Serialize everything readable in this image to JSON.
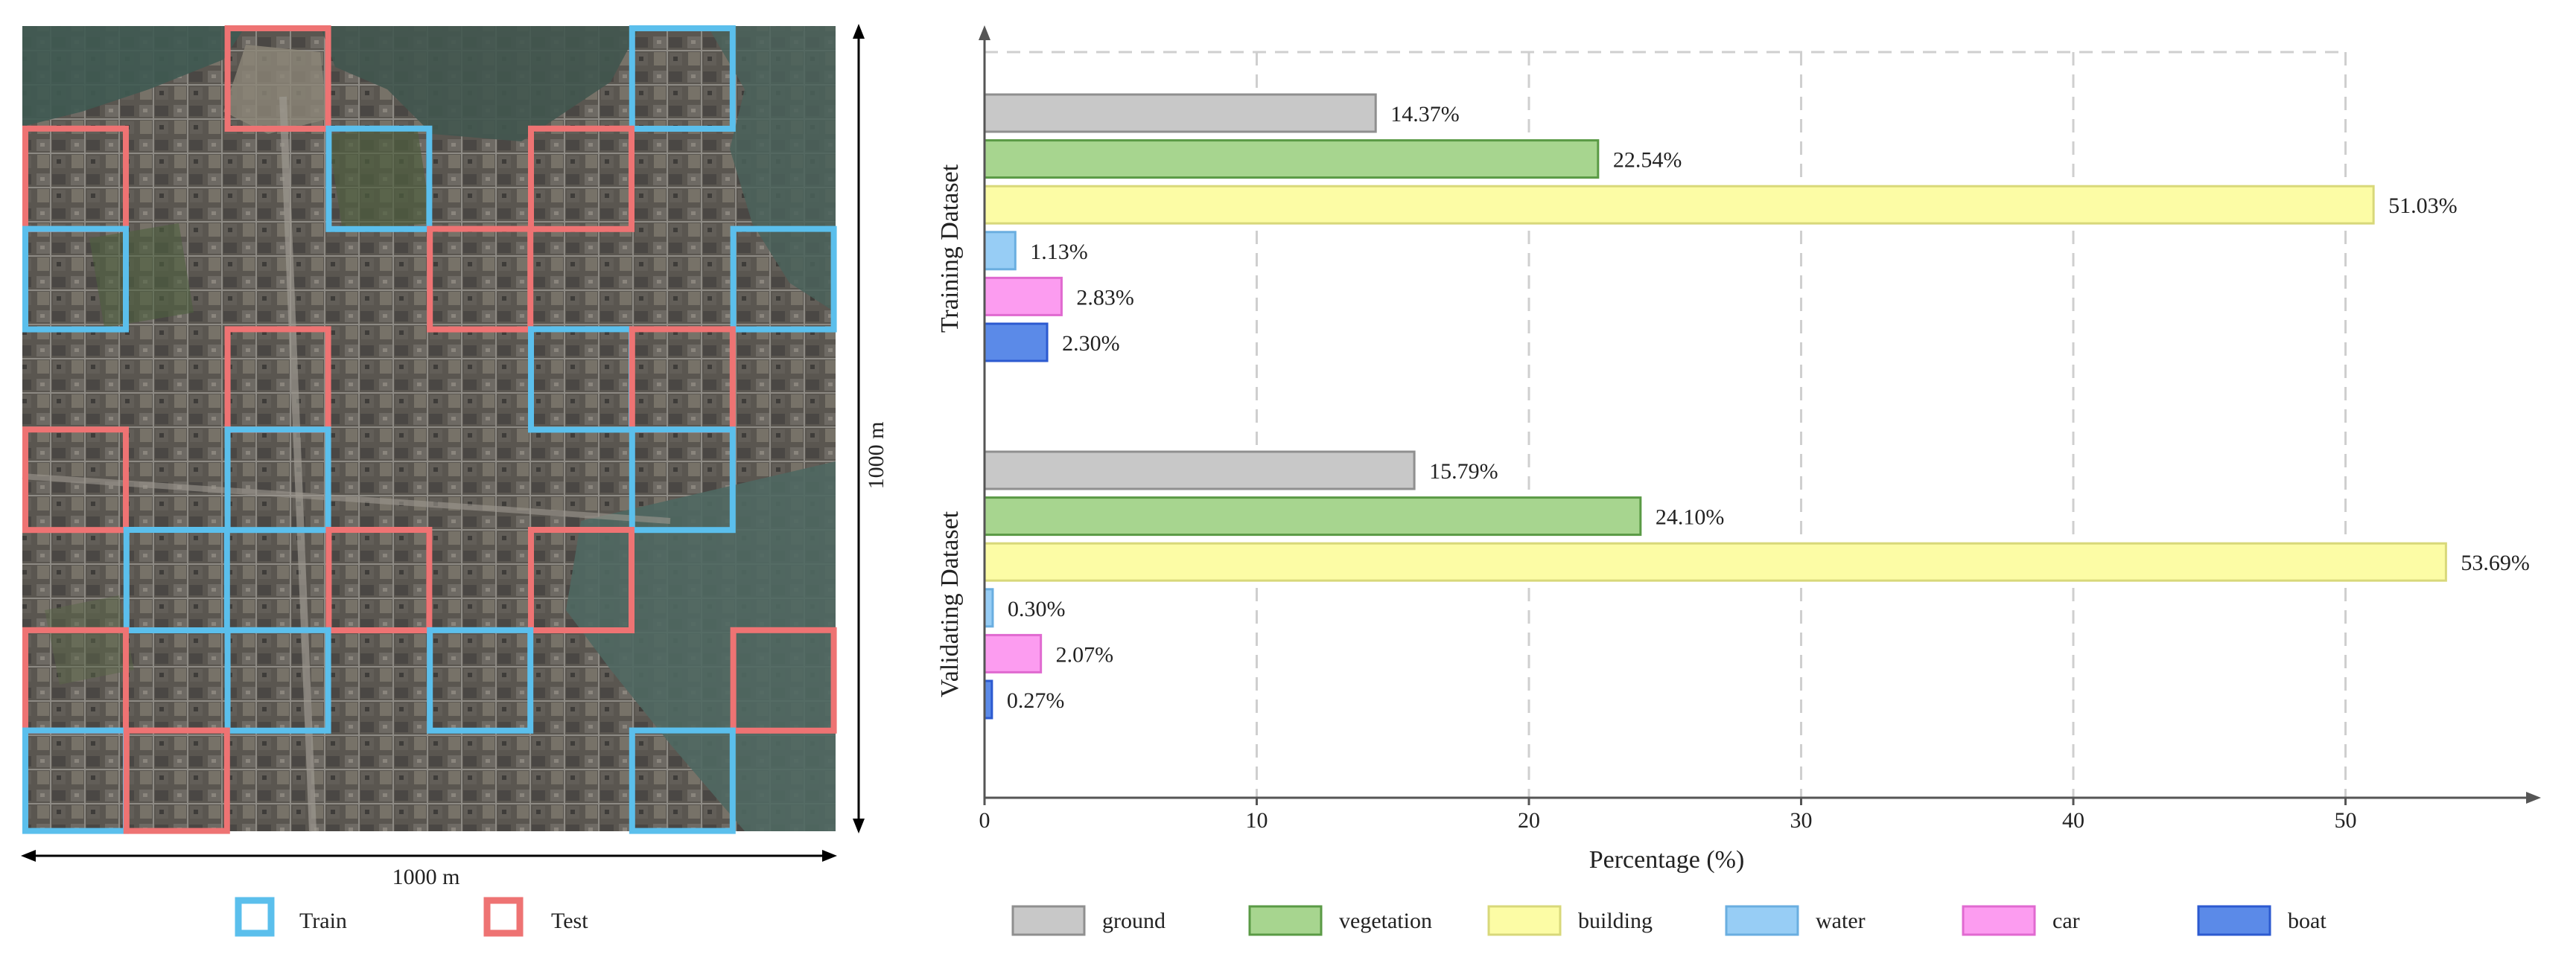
{
  "map_panel": {
    "width_label": "1000 m",
    "height_label": "1000 m",
    "legend": [
      {
        "label": "Train",
        "color": "#5bbfec"
      },
      {
        "label": "Test",
        "color": "#ee7373"
      }
    ],
    "grid": {
      "columns": 8,
      "rows": 8,
      "tiles": [
        {
          "col": 2,
          "row": 0,
          "split": "Test"
        },
        {
          "col": 6,
          "row": 0,
          "split": "Train"
        },
        {
          "col": 0,
          "row": 1,
          "split": "Test"
        },
        {
          "col": 3,
          "row": 1,
          "split": "Train"
        },
        {
          "col": 5,
          "row": 1,
          "split": "Test"
        },
        {
          "col": 0,
          "row": 2,
          "split": "Train"
        },
        {
          "col": 4,
          "row": 2,
          "split": "Test"
        },
        {
          "col": 7,
          "row": 2,
          "split": "Train"
        },
        {
          "col": 2,
          "row": 3,
          "split": "Test"
        },
        {
          "col": 5,
          "row": 3,
          "split": "Train"
        },
        {
          "col": 6,
          "row": 3,
          "split": "Test"
        },
        {
          "col": 0,
          "row": 4,
          "split": "Test"
        },
        {
          "col": 2,
          "row": 4,
          "split": "Train"
        },
        {
          "col": 6,
          "row": 4,
          "split": "Train"
        },
        {
          "col": 1,
          "row": 5,
          "split": "Train"
        },
        {
          "col": 3,
          "row": 5,
          "split": "Test"
        },
        {
          "col": 5,
          "row": 5,
          "split": "Test"
        },
        {
          "col": 0,
          "row": 6,
          "split": "Test"
        },
        {
          "col": 2,
          "row": 6,
          "split": "Train"
        },
        {
          "col": 4,
          "row": 6,
          "split": "Train"
        },
        {
          "col": 7,
          "row": 6,
          "split": "Test"
        },
        {
          "col": 0,
          "row": 7,
          "split": "Train"
        },
        {
          "col": 1,
          "row": 7,
          "split": "Test"
        },
        {
          "col": 6,
          "row": 7,
          "split": "Train"
        }
      ]
    }
  },
  "chart_data": {
    "type": "bar",
    "orientation": "horizontal",
    "title": "",
    "xlabel": "Percentage (%)",
    "ylabel": "",
    "xlim": [
      0,
      57
    ],
    "xticks": [
      0,
      10,
      20,
      30,
      40,
      50
    ],
    "grid": true,
    "groups": [
      "Training Dataset",
      "Validating Dataset"
    ],
    "series": [
      {
        "name": "ground",
        "color": "#c8c8c8",
        "edge": "#8f8f8f",
        "values": [
          14.37,
          15.79
        ],
        "labels": [
          "14.37%",
          "15.79%"
        ]
      },
      {
        "name": "vegetation",
        "color": "#a7d58f",
        "edge": "#5a9a45",
        "values": [
          22.54,
          24.1
        ],
        "labels": [
          "22.54%",
          "24.10%"
        ]
      },
      {
        "name": "building",
        "color": "#fcfca5",
        "edge": "#d8d87a",
        "values": [
          51.03,
          53.69
        ],
        "labels": [
          "51.03%",
          "53.69%"
        ]
      },
      {
        "name": "water",
        "color": "#97cdf5",
        "edge": "#6aaee0",
        "values": [
          1.13,
          0.3
        ],
        "labels": [
          "1.13%",
          "0.30%"
        ]
      },
      {
        "name": "car",
        "color": "#fc9cf0",
        "edge": "#e06ad0",
        "values": [
          2.83,
          2.07
        ],
        "labels": [
          "2.83%",
          "2.07%"
        ]
      },
      {
        "name": "boat",
        "color": "#5b8ae8",
        "edge": "#2c5ad0",
        "values": [
          2.3,
          0.27
        ],
        "labels": [
          "2.30%",
          "0.27%"
        ]
      }
    ],
    "legend_position": "bottom"
  }
}
